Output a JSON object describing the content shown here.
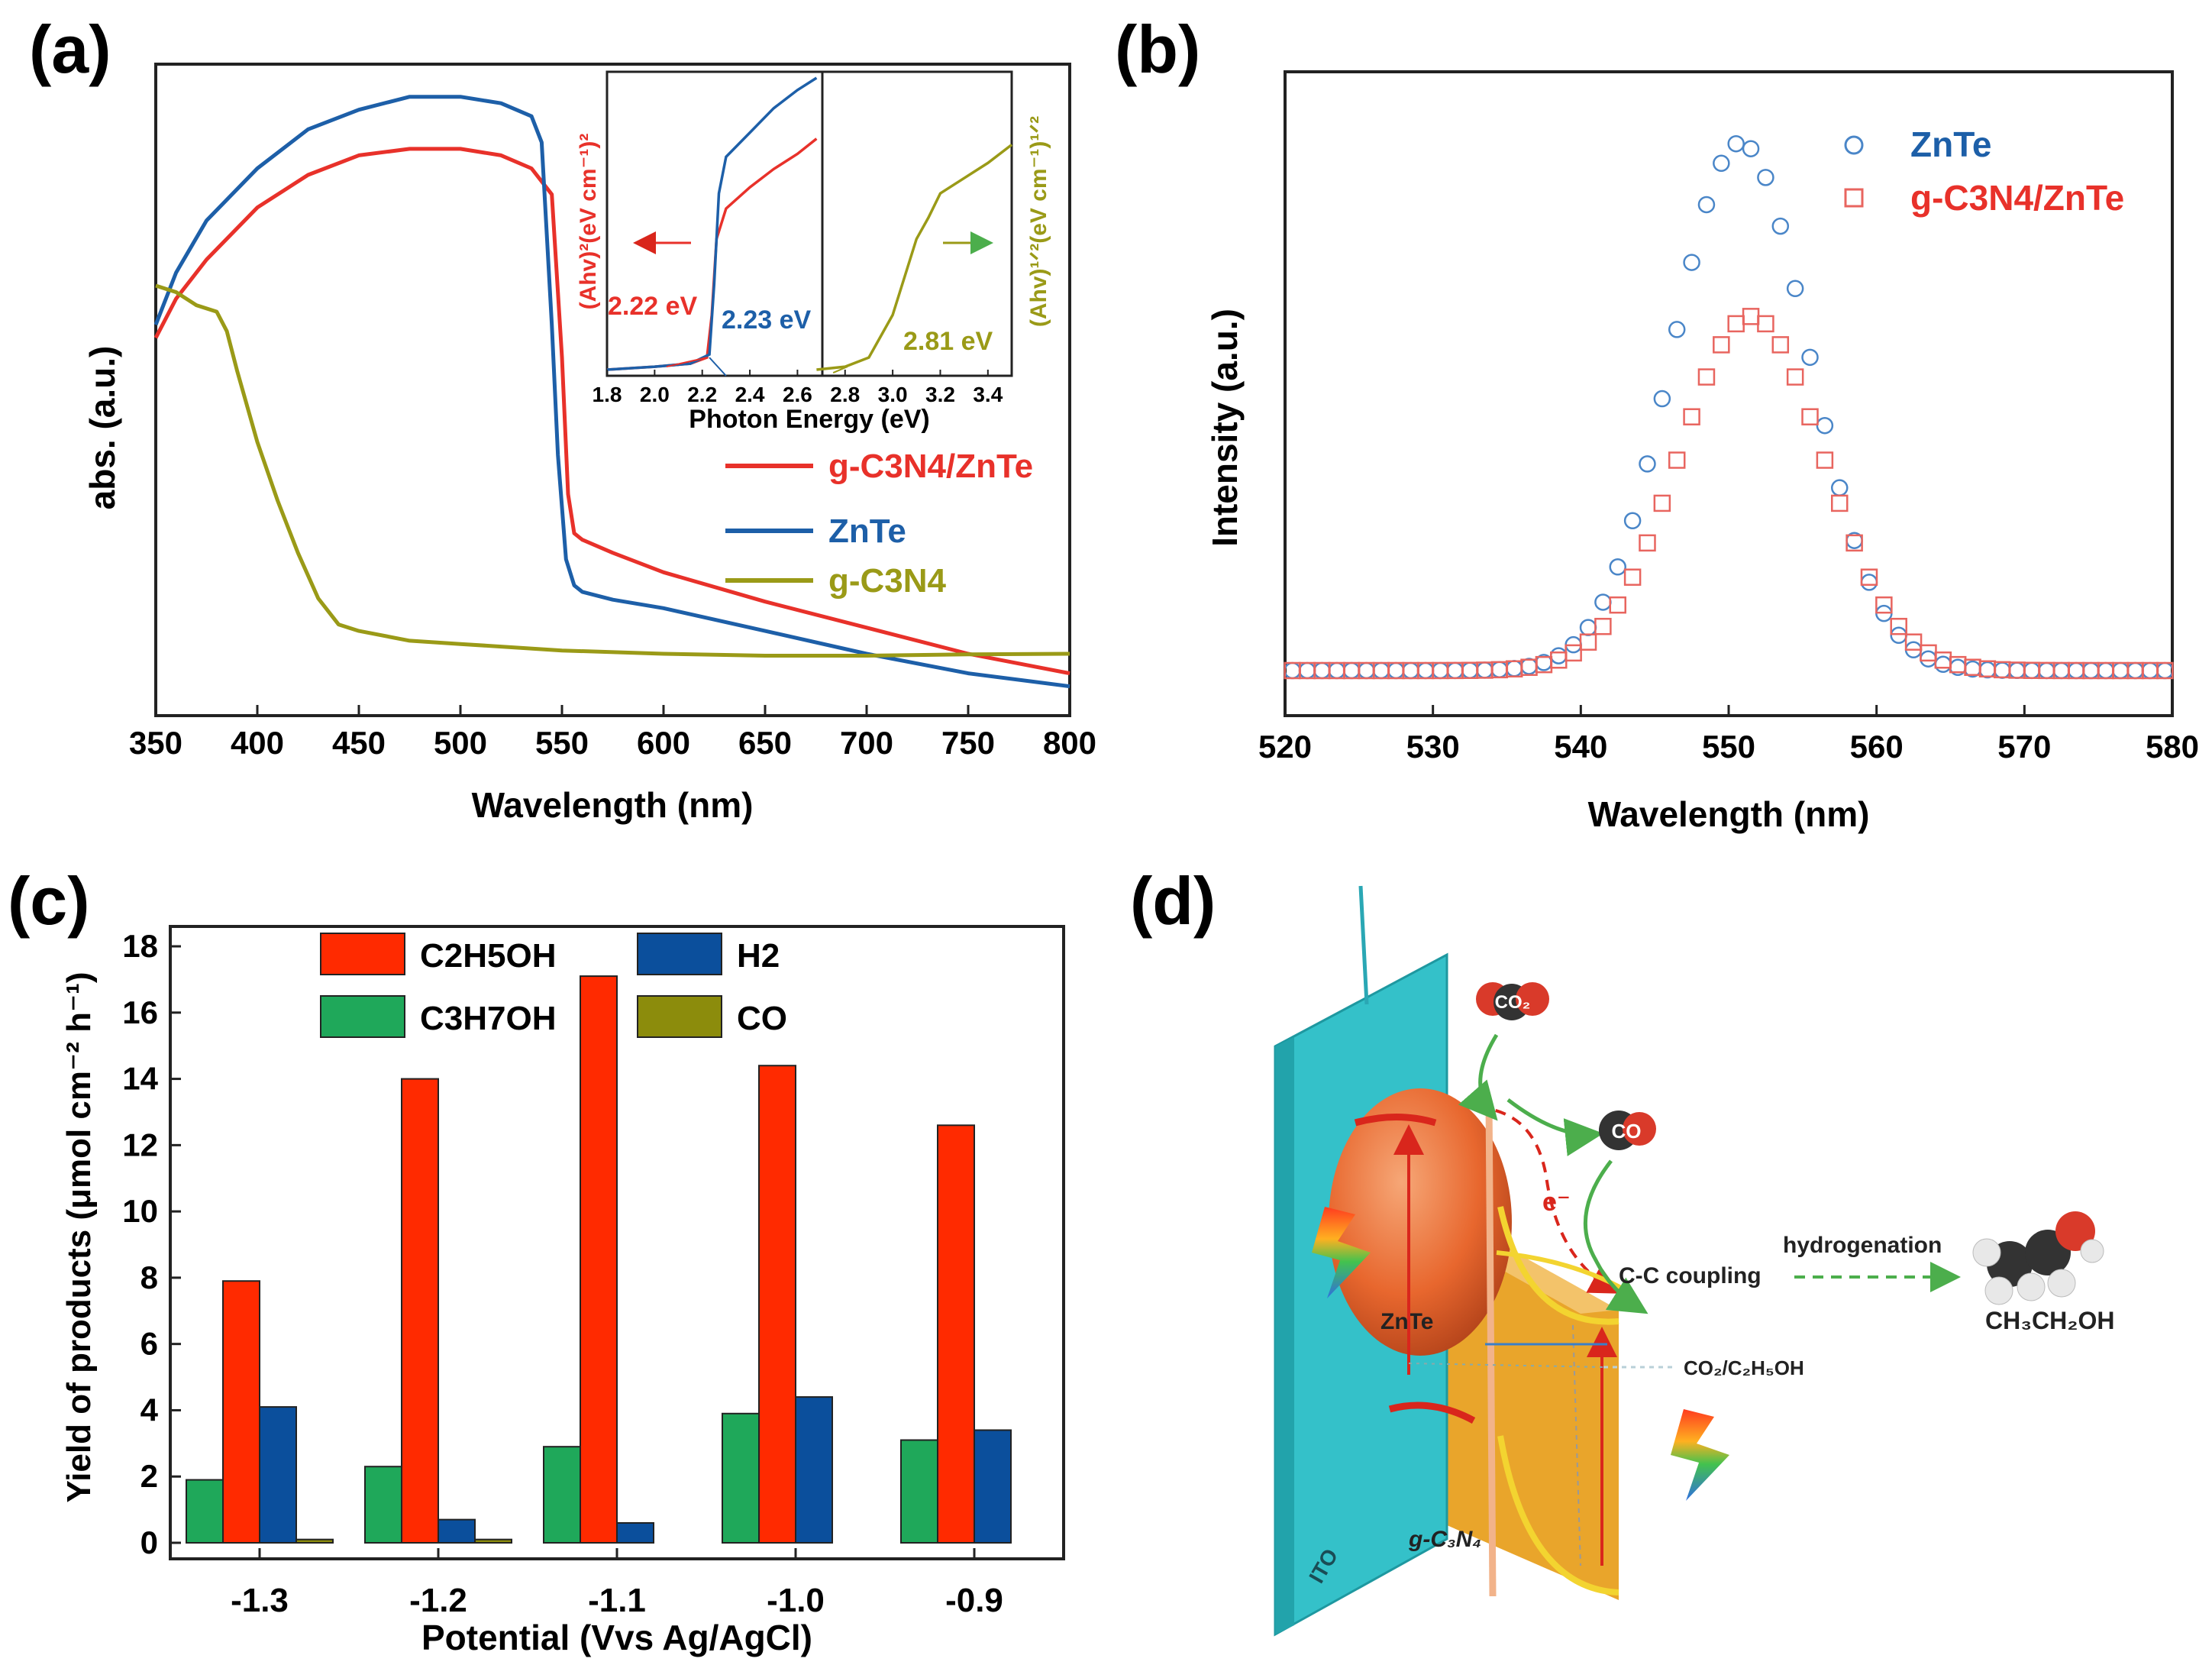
{
  "panel_labels": {
    "a": "(a)",
    "b": "(b)",
    "c": "(c)",
    "d": "(d)"
  },
  "colors": {
    "red": "#e8312a",
    "blue": "#1d5fa8",
    "olive": "#9a9a17",
    "bar_red": "#ff2a00",
    "bar_blue": "#0b4f9c",
    "bar_green": "#1fa85a",
    "bar_olive": "#8c8c0c",
    "ito": "#34c1c9",
    "gcn": "#e9a52b",
    "sphere": "#e8672e"
  },
  "chart_data": [
    {
      "id": "a",
      "type": "line",
      "xlabel": "Wavelength (nm)",
      "ylabel": "abs. (a.u.)",
      "xlim": [
        350,
        800
      ],
      "ylim": [
        0,
        1.0
      ],
      "xticks": [
        "350",
        "400",
        "450",
        "500",
        "550",
        "600",
        "650",
        "700",
        "750",
        "800"
      ],
      "legend": [
        "g-C3N4/ZnTe",
        "ZnTe",
        "g-C3N4"
      ],
      "series": [
        {
          "name": "g-C3N4/ZnTe",
          "color": "red",
          "x": [
            350,
            360,
            375,
            400,
            425,
            450,
            475,
            500,
            520,
            535,
            545,
            550,
            553,
            556,
            560,
            575,
            600,
            650,
            700,
            750,
            800
          ],
          "y": [
            0.58,
            0.64,
            0.7,
            0.78,
            0.83,
            0.86,
            0.87,
            0.87,
            0.86,
            0.84,
            0.8,
            0.55,
            0.34,
            0.28,
            0.27,
            0.25,
            0.22,
            0.175,
            0.135,
            0.095,
            0.065
          ]
        },
        {
          "name": "ZnTe",
          "color": "blue",
          "x": [
            350,
            360,
            375,
            400,
            425,
            450,
            475,
            500,
            520,
            535,
            540,
            545,
            548,
            552,
            556,
            560,
            575,
            600,
            650,
            700,
            750,
            800
          ],
          "y": [
            0.6,
            0.68,
            0.76,
            0.84,
            0.9,
            0.93,
            0.95,
            0.95,
            0.94,
            0.92,
            0.88,
            0.6,
            0.4,
            0.24,
            0.2,
            0.19,
            0.178,
            0.165,
            0.13,
            0.095,
            0.065,
            0.045
          ]
        },
        {
          "name": "g-C3N4",
          "color": "olive",
          "x": [
            350,
            360,
            370,
            380,
            385,
            390,
            400,
            410,
            420,
            430,
            440,
            450,
            475,
            500,
            550,
            600,
            650,
            700,
            750,
            800
          ],
          "y": [
            0.66,
            0.65,
            0.63,
            0.62,
            0.59,
            0.53,
            0.42,
            0.33,
            0.25,
            0.18,
            0.14,
            0.13,
            0.115,
            0.11,
            0.1,
            0.095,
            0.092,
            0.092,
            0.094,
            0.095
          ]
        }
      ],
      "inset": {
        "xlabel": "Photon Energy (eV)",
        "ylabel_left": "(Ahv)²(eV cm⁻¹)²",
        "ylabel_right": "(Ahv)¹ᐟ²(eV cm⁻¹)¹ᐟ²",
        "xticks": [
          "1.8",
          "2.0",
          "2.2",
          "2.4",
          "2.6",
          "2.8",
          "3.0",
          "3.2",
          "3.4"
        ],
        "annotations": [
          "2.22 eV",
          "2.23 eV",
          "2.81 eV"
        ],
        "series": [
          {
            "name": "g-C3N4/ZnTe",
            "color": "red",
            "x": [
              1.8,
              2.0,
              2.15,
              2.22,
              2.24,
              2.26,
              2.3,
              2.4,
              2.5,
              2.6,
              2.68
            ],
            "y": [
              0.02,
              0.03,
              0.04,
              0.06,
              0.2,
              0.45,
              0.55,
              0.62,
              0.68,
              0.73,
              0.78
            ]
          },
          {
            "name": "ZnTe",
            "color": "blue",
            "x": [
              1.8,
              2.0,
              2.15,
              2.23,
              2.25,
              2.27,
              2.3,
              2.4,
              2.5,
              2.6,
              2.68
            ],
            "y": [
              0.02,
              0.03,
              0.04,
              0.07,
              0.3,
              0.6,
              0.72,
              0.8,
              0.88,
              0.94,
              0.98
            ]
          },
          {
            "name": "g-C3N4",
            "color": "olive",
            "x": [
              2.68,
              2.8,
              2.9,
              3.0,
              3.1,
              3.15,
              3.2,
              3.3,
              3.4,
              3.5
            ],
            "y": [
              0.02,
              0.03,
              0.06,
              0.2,
              0.45,
              0.52,
              0.6,
              0.65,
              0.7,
              0.76
            ]
          }
        ]
      }
    },
    {
      "id": "b",
      "type": "scatter",
      "xlabel": "Wavelength (nm)",
      "ylabel": "Intensity (a.u.)",
      "xlim": [
        520,
        580
      ],
      "ylim": [
        0,
        1.0
      ],
      "xticks": [
        "520",
        "530",
        "540",
        "550",
        "560",
        "570",
        "580"
      ],
      "legend": [
        "ZnTe",
        "g-C3N4/ZnTe"
      ],
      "series": [
        {
          "name": "ZnTe",
          "marker": "circle",
          "color": "blue",
          "peak": 550.8,
          "width": 4.6,
          "base": 0.07,
          "amp": 0.82
        },
        {
          "name": "g-C3N4/ZnTe",
          "marker": "square",
          "color": "red",
          "peak": 551.5,
          "width": 4.9,
          "base": 0.07,
          "amp": 0.55
        }
      ]
    },
    {
      "id": "c",
      "type": "bar",
      "xlabel": "Potential (Vvs Ag/AgCl)",
      "ylabel": "Yield of products (μmol cm⁻² h⁻¹)",
      "ylim": [
        0,
        18
      ],
      "yticks": [
        "0",
        "2",
        "4",
        "6",
        "8",
        "10",
        "12",
        "14",
        "16",
        "18"
      ],
      "categories": [
        "-1.3",
        "-1.2",
        "-1.1",
        "-1.0",
        "-0.9"
      ],
      "series": [
        {
          "name": "C3H7OH",
          "color": "bar_green",
          "values": [
            1.9,
            2.3,
            2.9,
            3.9,
            3.1
          ]
        },
        {
          "name": "C2H5OH",
          "color": "bar_red",
          "values": [
            7.9,
            14.0,
            17.1,
            14.4,
            12.6
          ]
        },
        {
          "name": "H2",
          "color": "bar_blue",
          "values": [
            4.1,
            0.7,
            0.6,
            4.4,
            3.4
          ]
        },
        {
          "name": "CO",
          "color": "bar_olive",
          "values": [
            0.1,
            0.1,
            0.0,
            0.0,
            0.0
          ]
        }
      ]
    }
  ],
  "diagram": {
    "co2": "CO₂",
    "co": "CO",
    "electron": "e⁻",
    "cc_coupling": "C-C coupling",
    "hydrogenation": "hydrogenation",
    "product": "CH₃CH₂OH",
    "redox": "CO₂/C₂H₅OH",
    "znte": "ZnTe",
    "gcn": "g-C₃N₄",
    "ito": "ITO"
  }
}
